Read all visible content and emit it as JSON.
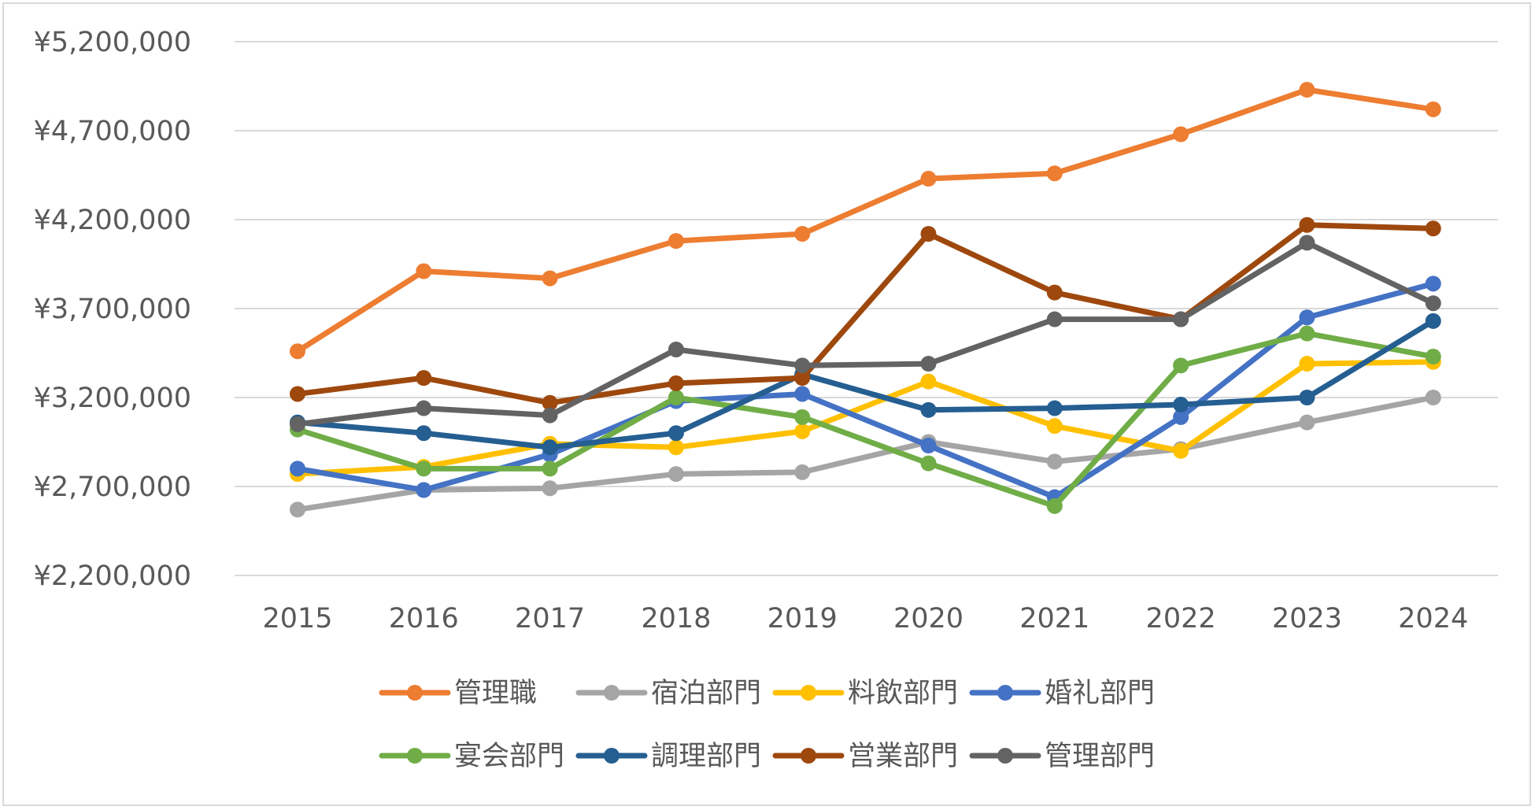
{
  "chart_data": {
    "type": "line",
    "title": "",
    "xlabel": "",
    "ylabel": "",
    "categories": [
      "2015",
      "2016",
      "2017",
      "2018",
      "2019",
      "2020",
      "2021",
      "2022",
      "2023",
      "2024"
    ],
    "y_ticks": [
      "¥2,200,000",
      "¥2,700,000",
      "¥3,200,000",
      "¥3,700,000",
      "¥4,200,000",
      "¥4,700,000",
      "¥5,200,000"
    ],
    "ylim": [
      2200000,
      5200000
    ],
    "grid": true,
    "legend_position": "bottom",
    "series": [
      {
        "name": "管理職",
        "color": "#ed7d31",
        "values": [
          3460000,
          3910000,
          3870000,
          4080000,
          4120000,
          4430000,
          4460000,
          4680000,
          4930000,
          4820000
        ]
      },
      {
        "name": "宿泊部門",
        "color": "#a5a5a5",
        "values": [
          2570000,
          2680000,
          2690000,
          2770000,
          2780000,
          2950000,
          2840000,
          2910000,
          3060000,
          3200000
        ]
      },
      {
        "name": "料飲部門",
        "color": "#ffc000",
        "values": [
          2770000,
          2810000,
          2940000,
          2920000,
          3010000,
          3290000,
          3040000,
          2900000,
          3390000,
          3400000
        ]
      },
      {
        "name": "婚礼部門",
        "color": "#4472c4",
        "values": [
          2800000,
          2680000,
          2880000,
          3180000,
          3220000,
          2930000,
          2640000,
          3090000,
          3650000,
          3840000
        ]
      },
      {
        "name": "宴会部門",
        "color": "#70ad47",
        "values": [
          3020000,
          2800000,
          2800000,
          3200000,
          3090000,
          2830000,
          2590000,
          3380000,
          3560000,
          3430000
        ]
      },
      {
        "name": "調理部門",
        "color": "#255e91",
        "values": [
          3060000,
          3000000,
          2920000,
          3000000,
          3330000,
          3130000,
          3140000,
          3160000,
          3200000,
          3630000
        ]
      },
      {
        "name": "営業部門",
        "color": "#9e480e",
        "values": [
          3220000,
          3310000,
          3170000,
          3280000,
          3310000,
          4120000,
          3790000,
          3640000,
          4170000,
          4150000
        ]
      },
      {
        "name": "管理部門",
        "color": "#636363",
        "values": [
          3050000,
          3140000,
          3100000,
          3470000,
          3380000,
          3390000,
          3640000,
          3640000,
          4070000,
          3730000
        ]
      }
    ]
  }
}
